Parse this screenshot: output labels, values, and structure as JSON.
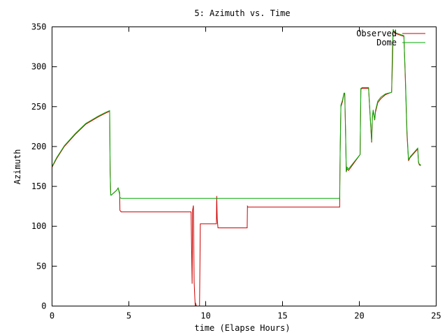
{
  "chart_data": {
    "type": "line",
    "title": "5: Azimuth vs. Time",
    "xlabel": "time (Elapse Hours)",
    "ylabel": "Azimuth",
    "xlim": [
      0,
      25
    ],
    "ylim": [
      0,
      350
    ],
    "xticks": [
      0,
      5,
      10,
      15,
      20,
      25
    ],
    "yticks": [
      0,
      50,
      100,
      150,
      200,
      250,
      300,
      350
    ],
    "grid": false,
    "legend_position": "top-right",
    "series": [
      {
        "name": "Observed",
        "color": "#cc0000",
        "x": [
          0,
          0.3,
          0.8,
          1.5,
          2.2,
          3.0,
          3.5,
          3.75,
          3.78,
          3.82,
          3.85,
          4.2,
          4.3,
          4.4,
          4.42,
          4.5,
          8.9,
          9.0,
          9.05,
          9.1,
          9.12,
          9.15,
          9.2,
          9.25,
          9.3,
          9.32,
          9.35,
          9.4,
          9.45,
          9.5,
          9.55,
          9.6,
          9.65,
          9.7,
          10.7,
          10.72,
          10.75,
          10.8,
          10.85,
          12.7,
          12.72,
          12.75,
          18.7,
          18.72,
          18.75,
          18.8,
          18.9,
          19.0,
          19.05,
          19.1,
          19.15,
          19.2,
          19.3,
          20.05,
          20.1,
          20.2,
          20.6,
          20.8,
          20.85,
          20.9,
          21.0,
          21.05,
          21.2,
          21.4,
          21.7,
          22.1,
          22.15,
          22.2,
          22.25,
          22.3,
          22.6,
          22.9,
          23.0,
          23.1,
          23.2,
          23.3,
          23.8,
          23.85,
          23.9,
          24.0
        ],
        "y": [
          174,
          185,
          200,
          215,
          228,
          237,
          242,
          244,
          170,
          140,
          139,
          145,
          148,
          142,
          120,
          118,
          118,
          118,
          118,
          50,
          28,
          120,
          126,
          30,
          8,
          0,
          3,
          0,
          0,
          0,
          0,
          0,
          103,
          103,
          103,
          138,
          110,
          98,
          98,
          98,
          125,
          124,
          124,
          124,
          192,
          250,
          256,
          266,
          266,
          220,
          168,
          172,
          170,
          190,
          272,
          273,
          273,
          205,
          236,
          245,
          233,
          243,
          255,
          260,
          265,
          268,
          300,
          346,
          344,
          342,
          340,
          338,
          280,
          215,
          182,
          186,
          197,
          180,
          177,
          176
        ]
      },
      {
        "name": "Dome",
        "color": "#00aa00",
        "x": [
          0,
          0.3,
          0.8,
          1.5,
          2.2,
          3.0,
          3.5,
          3.75,
          3.78,
          3.82,
          3.85,
          4.2,
          4.3,
          4.4,
          4.42,
          4.5,
          18.7,
          18.72,
          18.75,
          18.8,
          18.9,
          19.0,
          19.05,
          19.1,
          19.15,
          19.2,
          19.3,
          20.05,
          20.1,
          20.2,
          20.6,
          20.8,
          20.85,
          20.9,
          21.0,
          21.05,
          21.2,
          21.4,
          21.7,
          22.1,
          22.15,
          22.2,
          22.25,
          22.3,
          22.6,
          22.9,
          23.0,
          23.1,
          23.2,
          23.3,
          23.8,
          23.85,
          23.9,
          24.0
        ],
        "y": [
          175,
          186,
          201,
          216,
          229,
          238,
          243,
          245,
          168,
          139,
          139,
          145,
          148,
          140,
          136,
          135,
          135,
          135,
          190,
          252,
          258,
          267,
          267,
          225,
          168,
          174,
          172,
          190,
          273,
          274,
          274,
          207,
          238,
          246,
          234,
          245,
          257,
          262,
          266,
          268,
          320,
          347,
          345,
          343,
          341,
          339,
          285,
          220,
          183,
          187,
          198,
          181,
          178,
          177
        ]
      }
    ]
  }
}
